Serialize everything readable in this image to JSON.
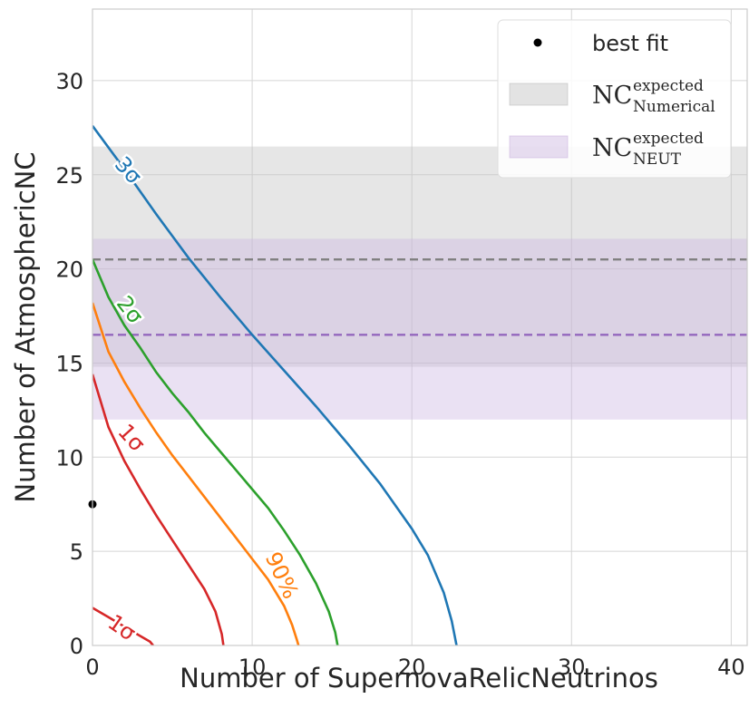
{
  "chart_data": {
    "type": "line",
    "xlabel": "Number of SupernovaRelicNeutrinos",
    "ylabel": "Number of AtmosphericNC",
    "xlim": [
      0,
      41
    ],
    "ylim": [
      0,
      33.8
    ],
    "xticks": [
      0,
      10,
      20,
      30,
      40
    ],
    "yticks": [
      0,
      5,
      10,
      15,
      20,
      25,
      30
    ],
    "grid": true,
    "best_fit": {
      "label": "best fit",
      "x": 0,
      "y": 7.5
    },
    "bands": [
      {
        "label_main": "NC",
        "label_sup": "expected",
        "label_sub": "Numerical",
        "center": 20.5,
        "low": 14.8,
        "high": 26.5,
        "color": "#c0c0c0"
      },
      {
        "label_main": "NC",
        "label_sup": "expected",
        "label_sub": "NEUT",
        "center": 16.5,
        "low": 12.0,
        "high": 21.6,
        "color": "#cbb5e0"
      }
    ],
    "contours": [
      {
        "label": "1σ",
        "color": "#d62728",
        "points": [
          [
            0,
            14.4
          ],
          [
            1,
            11.6
          ],
          [
            2,
            9.8
          ],
          [
            3,
            8.3
          ],
          [
            4,
            6.9
          ],
          [
            5,
            5.6
          ],
          [
            6,
            4.3
          ],
          [
            7,
            3.0
          ],
          [
            7.7,
            1.8
          ],
          [
            8.1,
            0.6
          ],
          [
            8.2,
            0
          ]
        ],
        "label_pos": [
          2.4,
          11.0
        ],
        "label_rot": 48
      },
      {
        "label": "1σ",
        "color": "#d62728",
        "points": [
          [
            0,
            2.0
          ],
          [
            1,
            1.5
          ],
          [
            2,
            1.0
          ],
          [
            3,
            0.5
          ],
          [
            3.6,
            0.2
          ],
          [
            3.8,
            0
          ]
        ],
        "label_pos": [
          1.8,
          0.9
        ],
        "label_rot": 35
      },
      {
        "label": "90%",
        "color": "#ff7f0e",
        "points": [
          [
            0,
            18.2
          ],
          [
            1,
            15.6
          ],
          [
            2,
            14.0
          ],
          [
            3,
            12.6
          ],
          [
            4,
            11.3
          ],
          [
            5,
            10.1
          ],
          [
            6,
            9.0
          ],
          [
            7,
            7.9
          ],
          [
            8,
            6.8
          ],
          [
            9,
            5.7
          ],
          [
            10,
            4.6
          ],
          [
            11,
            3.5
          ],
          [
            12,
            2.1
          ],
          [
            12.5,
            1.1
          ],
          [
            12.8,
            0.3
          ],
          [
            12.9,
            0
          ]
        ],
        "label_pos": [
          11.8,
          3.7
        ],
        "label_rot": 65
      },
      {
        "label": "2σ",
        "color": "#2ca02c",
        "points": [
          [
            0,
            20.5
          ],
          [
            1,
            18.5
          ],
          [
            2,
            17.0
          ],
          [
            3,
            15.8
          ],
          [
            4,
            14.5
          ],
          [
            5,
            13.4
          ],
          [
            6,
            12.4
          ],
          [
            7,
            11.3
          ],
          [
            8,
            10.3
          ],
          [
            9,
            9.3
          ],
          [
            10,
            8.3
          ],
          [
            11,
            7.3
          ],
          [
            12,
            6.1
          ],
          [
            13,
            4.8
          ],
          [
            14,
            3.3
          ],
          [
            14.8,
            1.8
          ],
          [
            15.2,
            0.7
          ],
          [
            15.35,
            0
          ]
        ],
        "label_pos": [
          2.3,
          17.8
        ],
        "label_rot": 52
      },
      {
        "label": "3σ",
        "color": "#1f77b4",
        "points": [
          [
            0,
            27.6
          ],
          [
            2,
            25.3
          ],
          [
            4,
            22.9
          ],
          [
            6,
            20.6
          ],
          [
            8,
            18.5
          ],
          [
            10,
            16.5
          ],
          [
            12,
            14.6
          ],
          [
            14,
            12.7
          ],
          [
            16,
            10.7
          ],
          [
            18,
            8.6
          ],
          [
            20,
            6.2
          ],
          [
            21,
            4.8
          ],
          [
            22,
            2.8
          ],
          [
            22.5,
            1.3
          ],
          [
            22.8,
            0
          ]
        ],
        "label_pos": [
          2.2,
          25.2
        ],
        "label_rot": 48
      }
    ]
  }
}
